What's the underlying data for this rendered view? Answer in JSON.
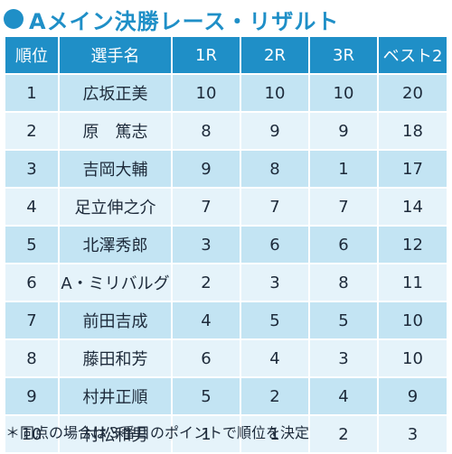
{
  "title": "Aメイン決勝レース・リザルト",
  "table": {
    "headers": [
      "順位",
      "選手名",
      "1R",
      "2R",
      "3R",
      "ベスト2"
    ],
    "rows": [
      [
        "1",
        "広坂正美",
        "10",
        "10",
        "10",
        "20"
      ],
      [
        "2",
        "原　篤志",
        "8",
        "9",
        "9",
        "18"
      ],
      [
        "3",
        "吉岡大輔",
        "9",
        "8",
        "1",
        "17"
      ],
      [
        "4",
        "足立伸之介",
        "7",
        "7",
        "7",
        "14"
      ],
      [
        "5",
        "北澤秀郎",
        "3",
        "6",
        "6",
        "12"
      ],
      [
        "6",
        "A・ミリバルグ",
        "2",
        "3",
        "8",
        "11"
      ],
      [
        "7",
        "前田吉成",
        "4",
        "5",
        "5",
        "10"
      ],
      [
        "8",
        "藤田和芳",
        "6",
        "4",
        "3",
        "10"
      ],
      [
        "9",
        "村井正順",
        "5",
        "2",
        "4",
        "9"
      ],
      [
        "10",
        "村松和男",
        "1",
        "1",
        "2",
        "3"
      ]
    ]
  },
  "note": "＊同点の場合は３番目のポイントで順位を決定",
  "colors": {
    "accent": "#1f8fc7",
    "row_dark": "#c3e4f3",
    "row_light": "#e5f3fa",
    "text": "#1d2a3a"
  }
}
